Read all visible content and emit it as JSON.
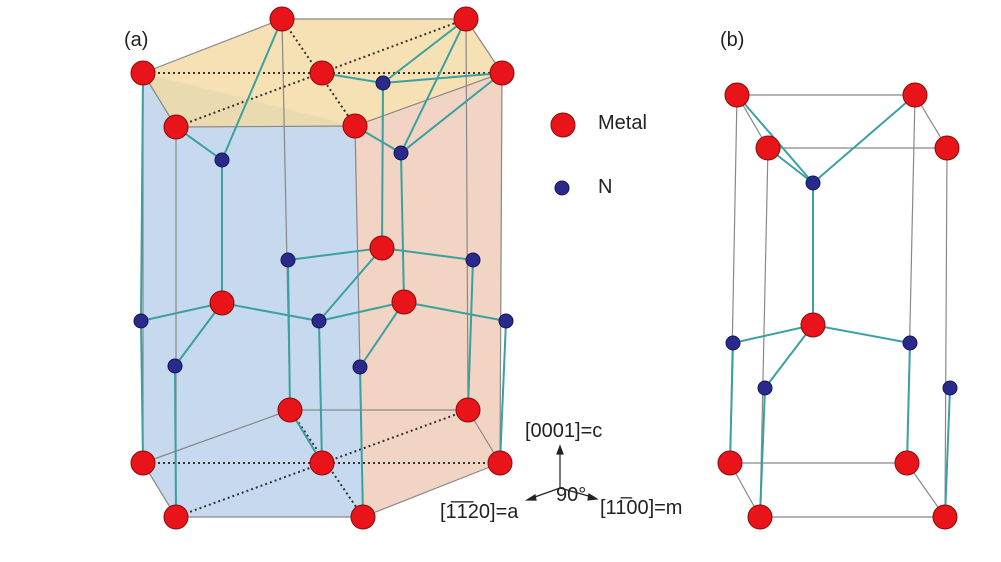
{
  "panel_a": {
    "label": "(a)"
  },
  "panel_b": {
    "label": "(b)"
  },
  "legend": {
    "items": [
      {
        "label": "Metal"
      },
      {
        "label": "N"
      }
    ]
  },
  "axes": {
    "c": "[0001]=c",
    "a": "[1̅1̅20]=a",
    "m": "[11̅00]=m",
    "angle": "90°"
  }
}
